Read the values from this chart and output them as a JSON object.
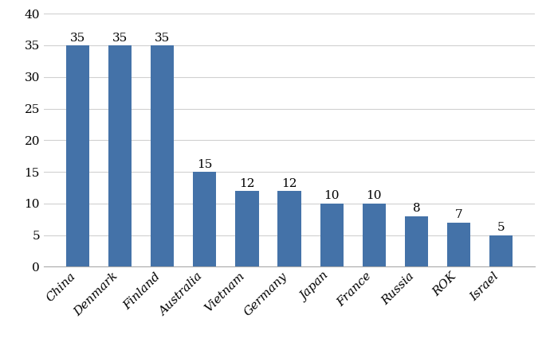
{
  "categories": [
    "China",
    "Denmark",
    "Finland",
    "Australia",
    "Vietnam",
    "Germany",
    "Japan",
    "France",
    "Russia",
    "ROK",
    "Israel"
  ],
  "values": [
    35,
    35,
    35,
    15,
    12,
    12,
    10,
    10,
    8,
    7,
    5
  ],
  "bar_color": "#4472a8",
  "ylim": [
    0,
    40
  ],
  "yticks": [
    0,
    5,
    10,
    15,
    20,
    25,
    30,
    35,
    40
  ],
  "label_fontsize": 11,
  "tick_fontsize": 11,
  "xtick_fontsize": 11,
  "background_color": "#ffffff",
  "grid_color": "#d0d0d0",
  "bar_width": 0.55
}
